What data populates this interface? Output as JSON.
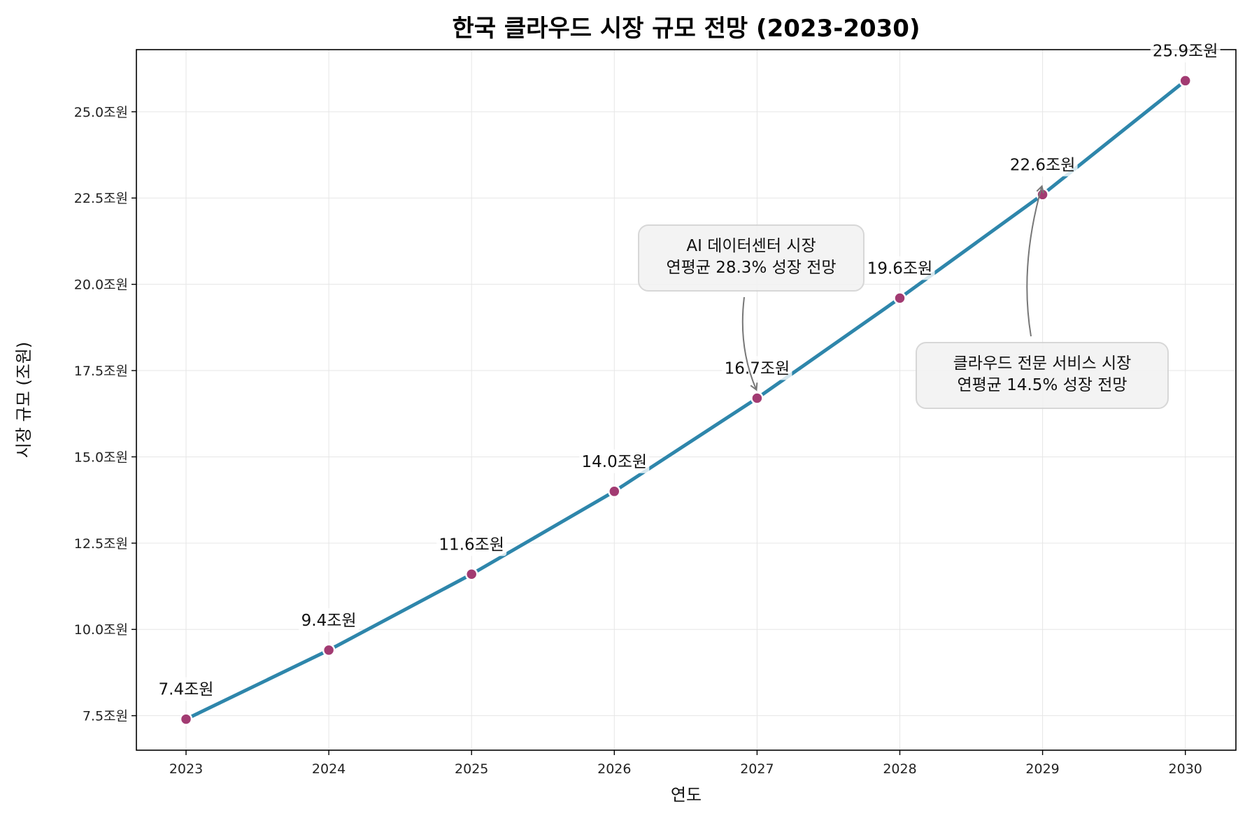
{
  "chart_data": {
    "type": "line",
    "title": "한국 클라우드 시장 규모 전망 (2023-2030)",
    "xlabel": "연도",
    "ylabel": "시장 규모 (조원)",
    "x": [
      "2023",
      "2024",
      "2025",
      "2026",
      "2027",
      "2028",
      "2029",
      "2030"
    ],
    "series": [
      {
        "values": [
          7.4,
          9.4,
          11.6,
          14.0,
          16.7,
          19.6,
          22.6,
          25.9
        ],
        "point_labels": [
          "7.4조원",
          "9.4조원",
          "11.6조원",
          "14.0조원",
          "16.7조원",
          "19.6조원",
          "22.6조원",
          "25.9조원"
        ]
      }
    ],
    "ylim": [
      6.5,
      26.8
    ],
    "yticks": [
      7.5,
      10.0,
      12.5,
      15.0,
      17.5,
      20.0,
      22.5,
      25.0
    ],
    "ytick_labels": [
      "7.5조원",
      "10.0조원",
      "12.5조원",
      "15.0조원",
      "17.5조원",
      "20.0조원",
      "22.5조원",
      "25.0조원"
    ],
    "grid": true,
    "line_color": "#2e86ab",
    "marker_color": "#a23b72",
    "annotations": [
      {
        "lines": [
          "AI 데이터센터 시장",
          "연평균 28.3% 성장 전망"
        ],
        "target_x": "2027",
        "target_y": 16.7
      },
      {
        "lines": [
          "클라우드 전문 서비스 시장",
          "연평균 14.5% 성장 전망"
        ],
        "target_x": "2029",
        "target_y": 22.6
      }
    ]
  }
}
